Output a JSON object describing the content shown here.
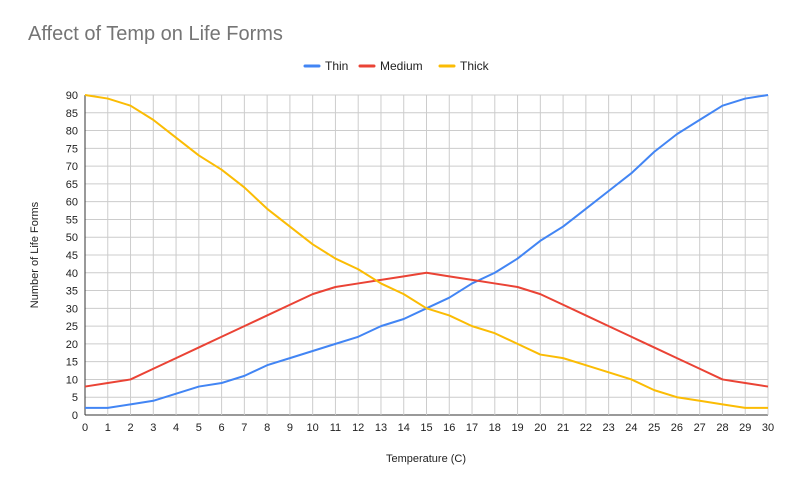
{
  "chart_data": {
    "type": "line",
    "title": "Affect of Temp on Life Forms",
    "xlabel": "Temperature (C)",
    "ylabel": "Number of Life Forms",
    "xlim": [
      0,
      30
    ],
    "ylim": [
      0,
      90
    ],
    "y_tick_step": 5,
    "x": [
      0,
      1,
      2,
      3,
      4,
      5,
      6,
      7,
      8,
      9,
      10,
      11,
      12,
      13,
      14,
      15,
      16,
      17,
      18,
      19,
      20,
      21,
      22,
      23,
      24,
      25,
      26,
      27,
      28,
      29,
      30
    ],
    "grid": true,
    "legend_position": "top-center",
    "series": [
      {
        "name": "Thin",
        "color": "#4285f4",
        "values": [
          2,
          2,
          3,
          4,
          6,
          8,
          9,
          11,
          14,
          16,
          18,
          20,
          22,
          25,
          27,
          30,
          33,
          37,
          40,
          44,
          49,
          53,
          58,
          63,
          68,
          74,
          79,
          83,
          87,
          89,
          90
        ]
      },
      {
        "name": "Medium",
        "color": "#ea4335",
        "values": [
          8,
          9,
          10,
          13,
          16,
          19,
          22,
          25,
          28,
          31,
          34,
          36,
          37,
          38,
          39,
          40,
          39,
          38,
          37,
          36,
          34,
          31,
          28,
          25,
          22,
          19,
          16,
          13,
          10,
          9,
          8
        ]
      },
      {
        "name": "Thick",
        "color": "#fbbc04",
        "values": [
          90,
          89,
          87,
          83,
          78,
          73,
          69,
          64,
          58,
          53,
          48,
          44,
          41,
          37,
          34,
          30,
          28,
          25,
          23,
          20,
          17,
          16,
          14,
          12,
          10,
          7,
          5,
          4,
          3,
          2,
          2
        ]
      }
    ]
  }
}
